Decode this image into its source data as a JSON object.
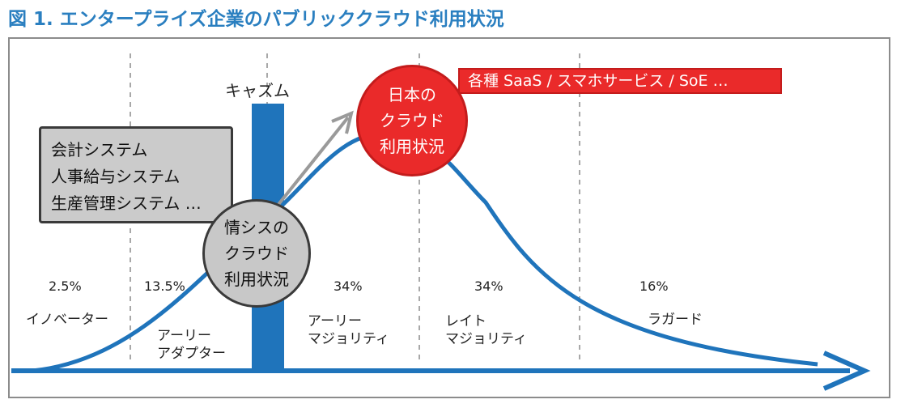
{
  "title": "図 1. エンタープライズ企業のパブリッククラウド利用状況",
  "chasm": {
    "label": "キャズム"
  },
  "legacy_box": {
    "lines": [
      "会計システム",
      "人事給与システム",
      "生産管理システム …"
    ]
  },
  "saas_box": {
    "text": "各種 SaaS / スマホサービス / SoE …"
  },
  "circle_japan": {
    "lines": [
      "日本の",
      "クラウド",
      "利用状況"
    ]
  },
  "circle_is": {
    "lines": [
      "情シスの",
      "クラウド",
      "利用状況"
    ]
  },
  "segments": [
    {
      "percent": "2.5%",
      "lines": [
        "イノベーター"
      ]
    },
    {
      "percent": "13.5%",
      "lines": [
        "アーリー",
        "アダプター"
      ]
    },
    {
      "percent": "34%",
      "lines": [
        "アーリー",
        "マジョリティ"
      ]
    },
    {
      "percent": "34%",
      "lines": [
        "レイト",
        "マジョリティ"
      ]
    },
    {
      "percent": "16%",
      "lines": [
        "ラガード"
      ]
    }
  ],
  "colors": {
    "title": "#2a7fc0",
    "curve": "#1f74bb",
    "red": "#ea2a2a",
    "gray": "#c8c8c8"
  }
}
